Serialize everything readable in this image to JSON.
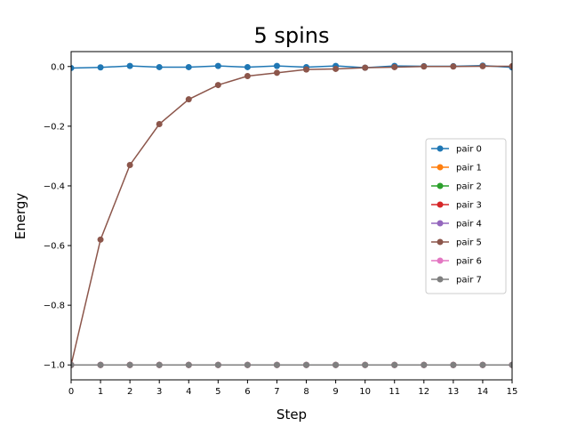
{
  "chart_data": {
    "type": "line",
    "title": "5 spins",
    "xlabel": "Step",
    "ylabel": "Energy",
    "xlim": [
      0,
      15
    ],
    "ylim": [
      -1.05,
      0.05
    ],
    "xticks": [
      0,
      1,
      2,
      3,
      4,
      5,
      6,
      7,
      8,
      9,
      10,
      11,
      12,
      13,
      14,
      15
    ],
    "yticks": [
      0.0,
      -0.2,
      -0.4,
      -0.6,
      -0.8,
      -1.0
    ],
    "ytick_labels": [
      "0.0",
      "−0.2",
      "−0.4",
      "−0.6",
      "−0.8",
      "−1.0"
    ],
    "grid": false,
    "legend_position": "center-right",
    "x": [
      0,
      1,
      2,
      3,
      4,
      5,
      6,
      7,
      8,
      9,
      10,
      11,
      12,
      13,
      14,
      15
    ],
    "series": [
      {
        "name": "pair 0",
        "color": "#1f77b4",
        "values": [
          -0.005,
          -0.003,
          0.002,
          -0.002,
          -0.002,
          0.002,
          -0.002,
          0.002,
          -0.002,
          0.002,
          -0.004,
          0.002,
          0.001,
          0.001,
          0.003,
          -0.003
        ]
      },
      {
        "name": "pair 1",
        "color": "#ff7f0e",
        "values": [
          -1.0,
          -1.0,
          -1.0,
          -1.0,
          -1.0,
          -1.0,
          -1.0,
          -1.0,
          -1.0,
          -1.0,
          -1.0,
          -1.0,
          -1.0,
          -1.0,
          -1.0,
          -1.0
        ]
      },
      {
        "name": "pair 2",
        "color": "#2ca02c",
        "values": [
          -1.0,
          -1.0,
          -1.0,
          -1.0,
          -1.0,
          -1.0,
          -1.0,
          -1.0,
          -1.0,
          -1.0,
          -1.0,
          -1.0,
          -1.0,
          -1.0,
          -1.0,
          -1.0
        ]
      },
      {
        "name": "pair 3",
        "color": "#d62728",
        "values": [
          -1.0,
          -1.0,
          -1.0,
          -1.0,
          -1.0,
          -1.0,
          -1.0,
          -1.0,
          -1.0,
          -1.0,
          -1.0,
          -1.0,
          -1.0,
          -1.0,
          -1.0,
          -1.0
        ]
      },
      {
        "name": "pair 4",
        "color": "#9467bd",
        "values": [
          -1.0,
          -1.0,
          -1.0,
          -1.0,
          -1.0,
          -1.0,
          -1.0,
          -1.0,
          -1.0,
          -1.0,
          -1.0,
          -1.0,
          -1.0,
          -1.0,
          -1.0,
          -1.0
        ]
      },
      {
        "name": "pair 5",
        "color": "#8c564b",
        "values": [
          -1.0,
          -0.58,
          -0.33,
          -0.193,
          -0.11,
          -0.062,
          -0.032,
          -0.021,
          -0.01,
          -0.008,
          -0.004,
          -0.002,
          0.0,
          0.0,
          0.001,
          0.001
        ]
      },
      {
        "name": "pair 6",
        "color": "#e377c2",
        "values": [
          -1.0,
          -1.0,
          -1.0,
          -1.0,
          -1.0,
          -1.0,
          -1.0,
          -1.0,
          -1.0,
          -1.0,
          -1.0,
          -1.0,
          -1.0,
          -1.0,
          -1.0,
          -1.0
        ]
      },
      {
        "name": "pair 7",
        "color": "#7f7f7f",
        "values": [
          -1.0,
          -1.0,
          -1.0,
          -1.0,
          -1.0,
          -1.0,
          -1.0,
          -1.0,
          -1.0,
          -1.0,
          -1.0,
          -1.0,
          -1.0,
          -1.0,
          -1.0,
          -1.0
        ]
      }
    ]
  }
}
